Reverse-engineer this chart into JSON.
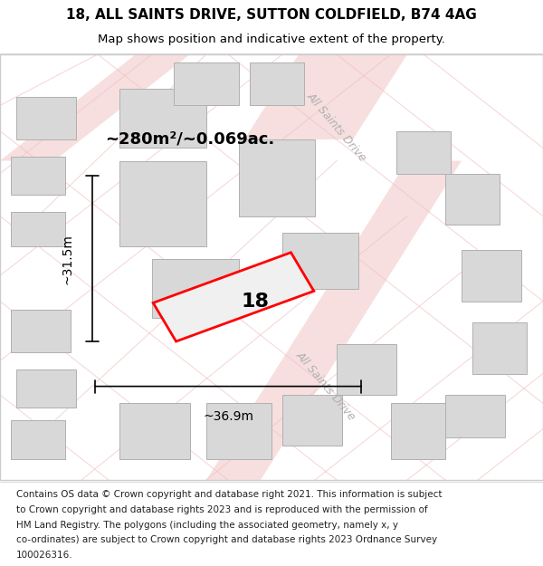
{
  "title_line1": "18, ALL SAINTS DRIVE, SUTTON COLDFIELD, B74 4AG",
  "title_line2": "Map shows position and indicative extent of the property.",
  "footer_lines": [
    "Contains OS data © Crown copyright and database right 2021. This information is subject",
    "to Crown copyright and database rights 2023 and is reproduced with the permission of",
    "HM Land Registry. The polygons (including the associated geometry, namely x, y",
    "co-ordinates) are subject to Crown copyright and database rights 2023 Ordnance Survey",
    "100026316."
  ],
  "area_label": "~280m²/~0.069ac.",
  "property_number": "18",
  "dim_height": "~31.5m",
  "dim_width": "~36.9m",
  "street_label_1": "All Saints Drive",
  "street_label_2": "All Saints Drive",
  "map_bg": "#f5f5f5",
  "plot_outline_color": "#ff0000",
  "road_color": "#f0c0c0",
  "building_color": "#d8d8d8",
  "building_outline": "#b0b0b0",
  "title_fontsize": 11,
  "subtitle_fontsize": 9.5,
  "footer_fontsize": 7.5,
  "area_fontsize": 13,
  "number_fontsize": 16,
  "dim_fontsize": 10,
  "street_fontsize": 9
}
